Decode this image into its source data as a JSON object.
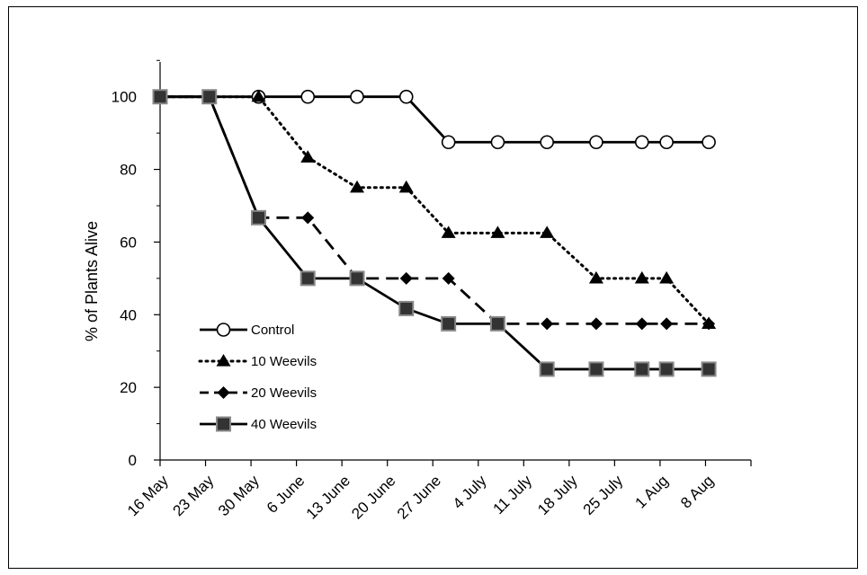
{
  "chart_data": {
    "type": "line",
    "ylabel": "% of Plants Alive",
    "xlabel": "",
    "ylim": [
      0,
      110
    ],
    "yticks": [
      0,
      20,
      40,
      60,
      80,
      100
    ],
    "categories": [
      "16 May",
      "23 May",
      "30 May",
      "6 June",
      "13 June",
      "20 June",
      "27 June",
      "4 July",
      "11 July",
      "18 July",
      "25 July",
      "1 Aug",
      "8 Aug"
    ],
    "grid": false,
    "legend_position": "bottom-left",
    "series": [
      {
        "name": "Control",
        "line_style": "solid",
        "marker": "open-circle",
        "color": "#000000",
        "points": [
          [
            16,
            100
          ],
          [
            23,
            100
          ],
          [
            30,
            100
          ],
          [
            37,
            100
          ],
          [
            44,
            100
          ],
          [
            51,
            100
          ],
          [
            57,
            87.5
          ],
          [
            64,
            87.5
          ],
          [
            71,
            87.5
          ],
          [
            78,
            87.5
          ],
          [
            84.5,
            87.5
          ],
          [
            88,
            87.5
          ],
          [
            94,
            87.5
          ]
        ]
      },
      {
        "name": "10 Weevils",
        "line_style": "dotted",
        "marker": "filled-triangle",
        "color": "#000000",
        "points": [
          [
            16,
            100
          ],
          [
            23,
            100
          ],
          [
            30,
            100
          ],
          [
            37,
            83.3
          ],
          [
            44,
            75
          ],
          [
            51,
            75
          ],
          [
            57,
            62.5
          ],
          [
            64,
            62.5
          ],
          [
            71,
            62.5
          ],
          [
            78,
            50
          ],
          [
            84.5,
            50
          ],
          [
            88,
            50
          ],
          [
            94,
            37.5
          ]
        ]
      },
      {
        "name": "20 Weevils",
        "line_style": "dashed",
        "marker": "filled-diamond",
        "color": "#000000",
        "points": [
          [
            16,
            100
          ],
          [
            23,
            100
          ],
          [
            30,
            66.7
          ],
          [
            37,
            66.7
          ],
          [
            44,
            50
          ],
          [
            51,
            50
          ],
          [
            57,
            50
          ],
          [
            64,
            37.5
          ],
          [
            71,
            37.5
          ],
          [
            78,
            37.5
          ],
          [
            84.5,
            37.5
          ],
          [
            88,
            37.5
          ],
          [
            94,
            37.5
          ]
        ]
      },
      {
        "name": "40 Weevils",
        "line_style": "solid",
        "marker": "filled-square",
        "color": "#000000",
        "points": [
          [
            16,
            100
          ],
          [
            23,
            100
          ],
          [
            30,
            66.7
          ],
          [
            37,
            50
          ],
          [
            44,
            50
          ],
          [
            51,
            41.7
          ],
          [
            57,
            37.5
          ],
          [
            64,
            37.5
          ],
          [
            71,
            25
          ],
          [
            78,
            25
          ],
          [
            84.5,
            25
          ],
          [
            88,
            25
          ],
          [
            94,
            25
          ]
        ]
      }
    ]
  }
}
